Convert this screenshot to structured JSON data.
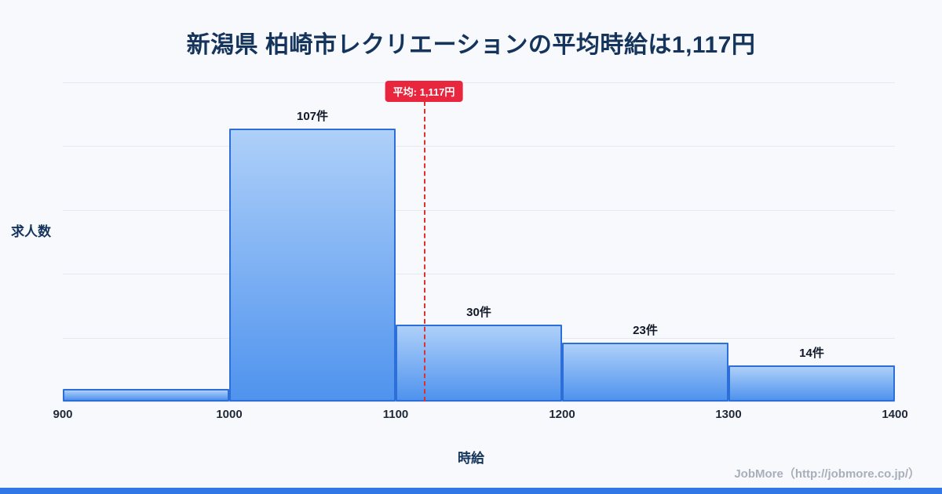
{
  "title": "新潟県 柏崎市レクリエーションの平均時給は1,117円",
  "chart_data": {
    "type": "bar",
    "title": "新潟県 柏崎市レクリエーションの平均時給は1,117円",
    "xlabel": "時給",
    "ylabel": "求人数",
    "bin_edges": [
      900,
      1000,
      1100,
      1200,
      1300,
      1400
    ],
    "values": [
      5,
      107,
      30,
      23,
      14
    ],
    "bar_labels": [
      "",
      "107件",
      "30件",
      "23件",
      "14件"
    ],
    "x_ticks": [
      "900",
      "1000",
      "1100",
      "1200",
      "1300",
      "1400"
    ],
    "xlim": [
      900,
      1400
    ],
    "ylim": [
      0,
      125
    ],
    "grid": true,
    "gridline_values": [
      25,
      50,
      75,
      100,
      125
    ],
    "average": {
      "value": 1117,
      "label": "平均: 1,117円"
    },
    "colors": {
      "bar_top": "#aed0f9",
      "bar_bottom": "#4f93ee",
      "bar_border": "#2d6fd9",
      "average_line": "#e03131",
      "badge_bg": "#e8273f",
      "title_text": "#15345b",
      "accent_strip": "#3178e6"
    }
  },
  "footer": {
    "credit": "JobMore（http://jobmore.co.jp/）"
  }
}
